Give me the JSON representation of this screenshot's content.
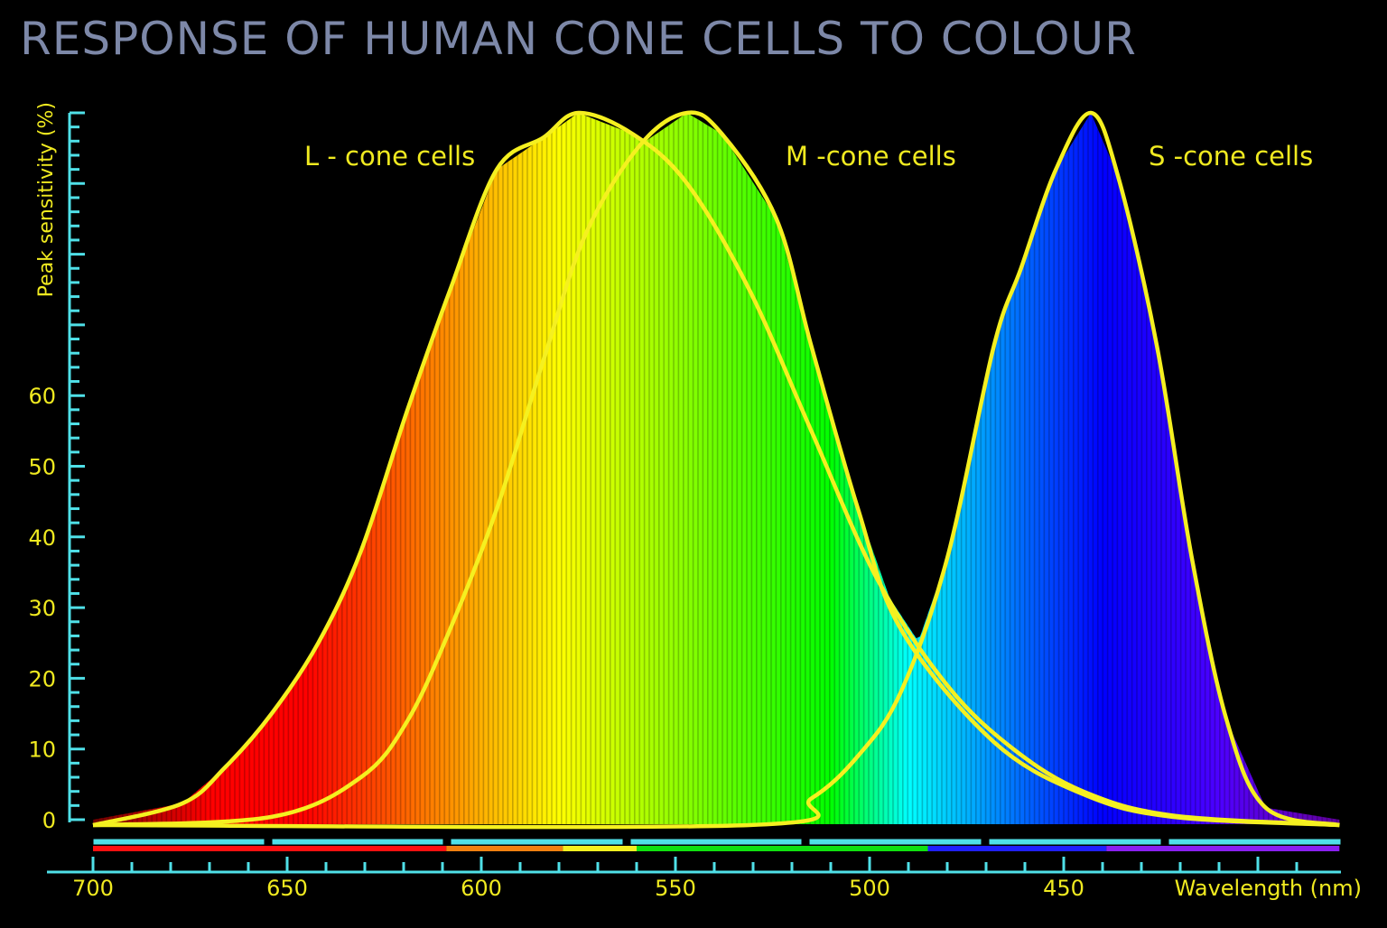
{
  "chart_data": {
    "type": "area",
    "title": "RESPONSE OF HUMAN CONE CELLS TO COLOUR",
    "xlabel": "Wavelength (nm)",
    "ylabel": "Peak sensitivity (%)",
    "xlim": [
      700,
      379
    ],
    "x_reversed": true,
    "ylim": [
      0,
      100
    ],
    "x_ticks": [
      700,
      650,
      600,
      550,
      500,
      450
    ],
    "y_ticks": [
      0,
      10,
      20,
      30,
      40,
      50,
      60
    ],
    "grid": false,
    "fill": "visible spectrum colours under the combined curves",
    "curve_color": "#f5f020",
    "axis_color": "#4fe0e8",
    "series": [
      {
        "name": "L - cone cells",
        "x": [
          700,
          677,
          666,
          654,
          642,
          631,
          619,
          608,
          596,
          584,
          575,
          561,
          547,
          531,
          515,
          498,
          480,
          463,
          445,
          422,
          379
        ],
        "y": [
          0,
          2.3,
          7.4,
          15,
          25,
          38,
          58,
          75,
          92,
          96.5,
          100,
          97,
          90,
          75,
          55,
          34,
          19,
          10,
          4,
          0.6,
          0
        ]
      },
      {
        "name": "M -cone cells",
        "x": [
          700,
          654,
          631,
          619,
          608,
          596,
          584,
          573,
          559,
          547,
          538,
          524,
          515,
          503,
          492,
          468,
          445,
          422,
          379
        ],
        "y": [
          0,
          0.4,
          6,
          14,
          27,
          44,
          65,
          83,
          95.5,
          100,
          97,
          85,
          67,
          44,
          27,
          11,
          3.6,
          0.4,
          0
        ]
      },
      {
        "name": "S -cone cells",
        "x": [
          700,
          531,
          515,
          503,
          492,
          480,
          468,
          461,
          452,
          443,
          436,
          426,
          417,
          408,
          398,
          379
        ],
        "y": [
          0,
          0,
          3,
          9,
          18,
          37,
          67,
          78,
          92,
          100,
          91,
          67,
          37,
          14,
          1.7,
          0
        ]
      }
    ],
    "colour_bands": [
      {
        "name": "red",
        "from": 700,
        "to": 609,
        "color": "#ff1010"
      },
      {
        "name": "orange",
        "from": 609,
        "to": 579,
        "color": "#f08010"
      },
      {
        "name": "yellow",
        "from": 579,
        "to": 560,
        "color": "#f5f020"
      },
      {
        "name": "green",
        "from": 560,
        "to": 485,
        "color": "#10e010"
      },
      {
        "name": "blue",
        "from": 485,
        "to": 439,
        "color": "#2020ff"
      },
      {
        "name": "violet",
        "from": 439,
        "to": 379,
        "color": "#8a20f0"
      }
    ]
  }
}
